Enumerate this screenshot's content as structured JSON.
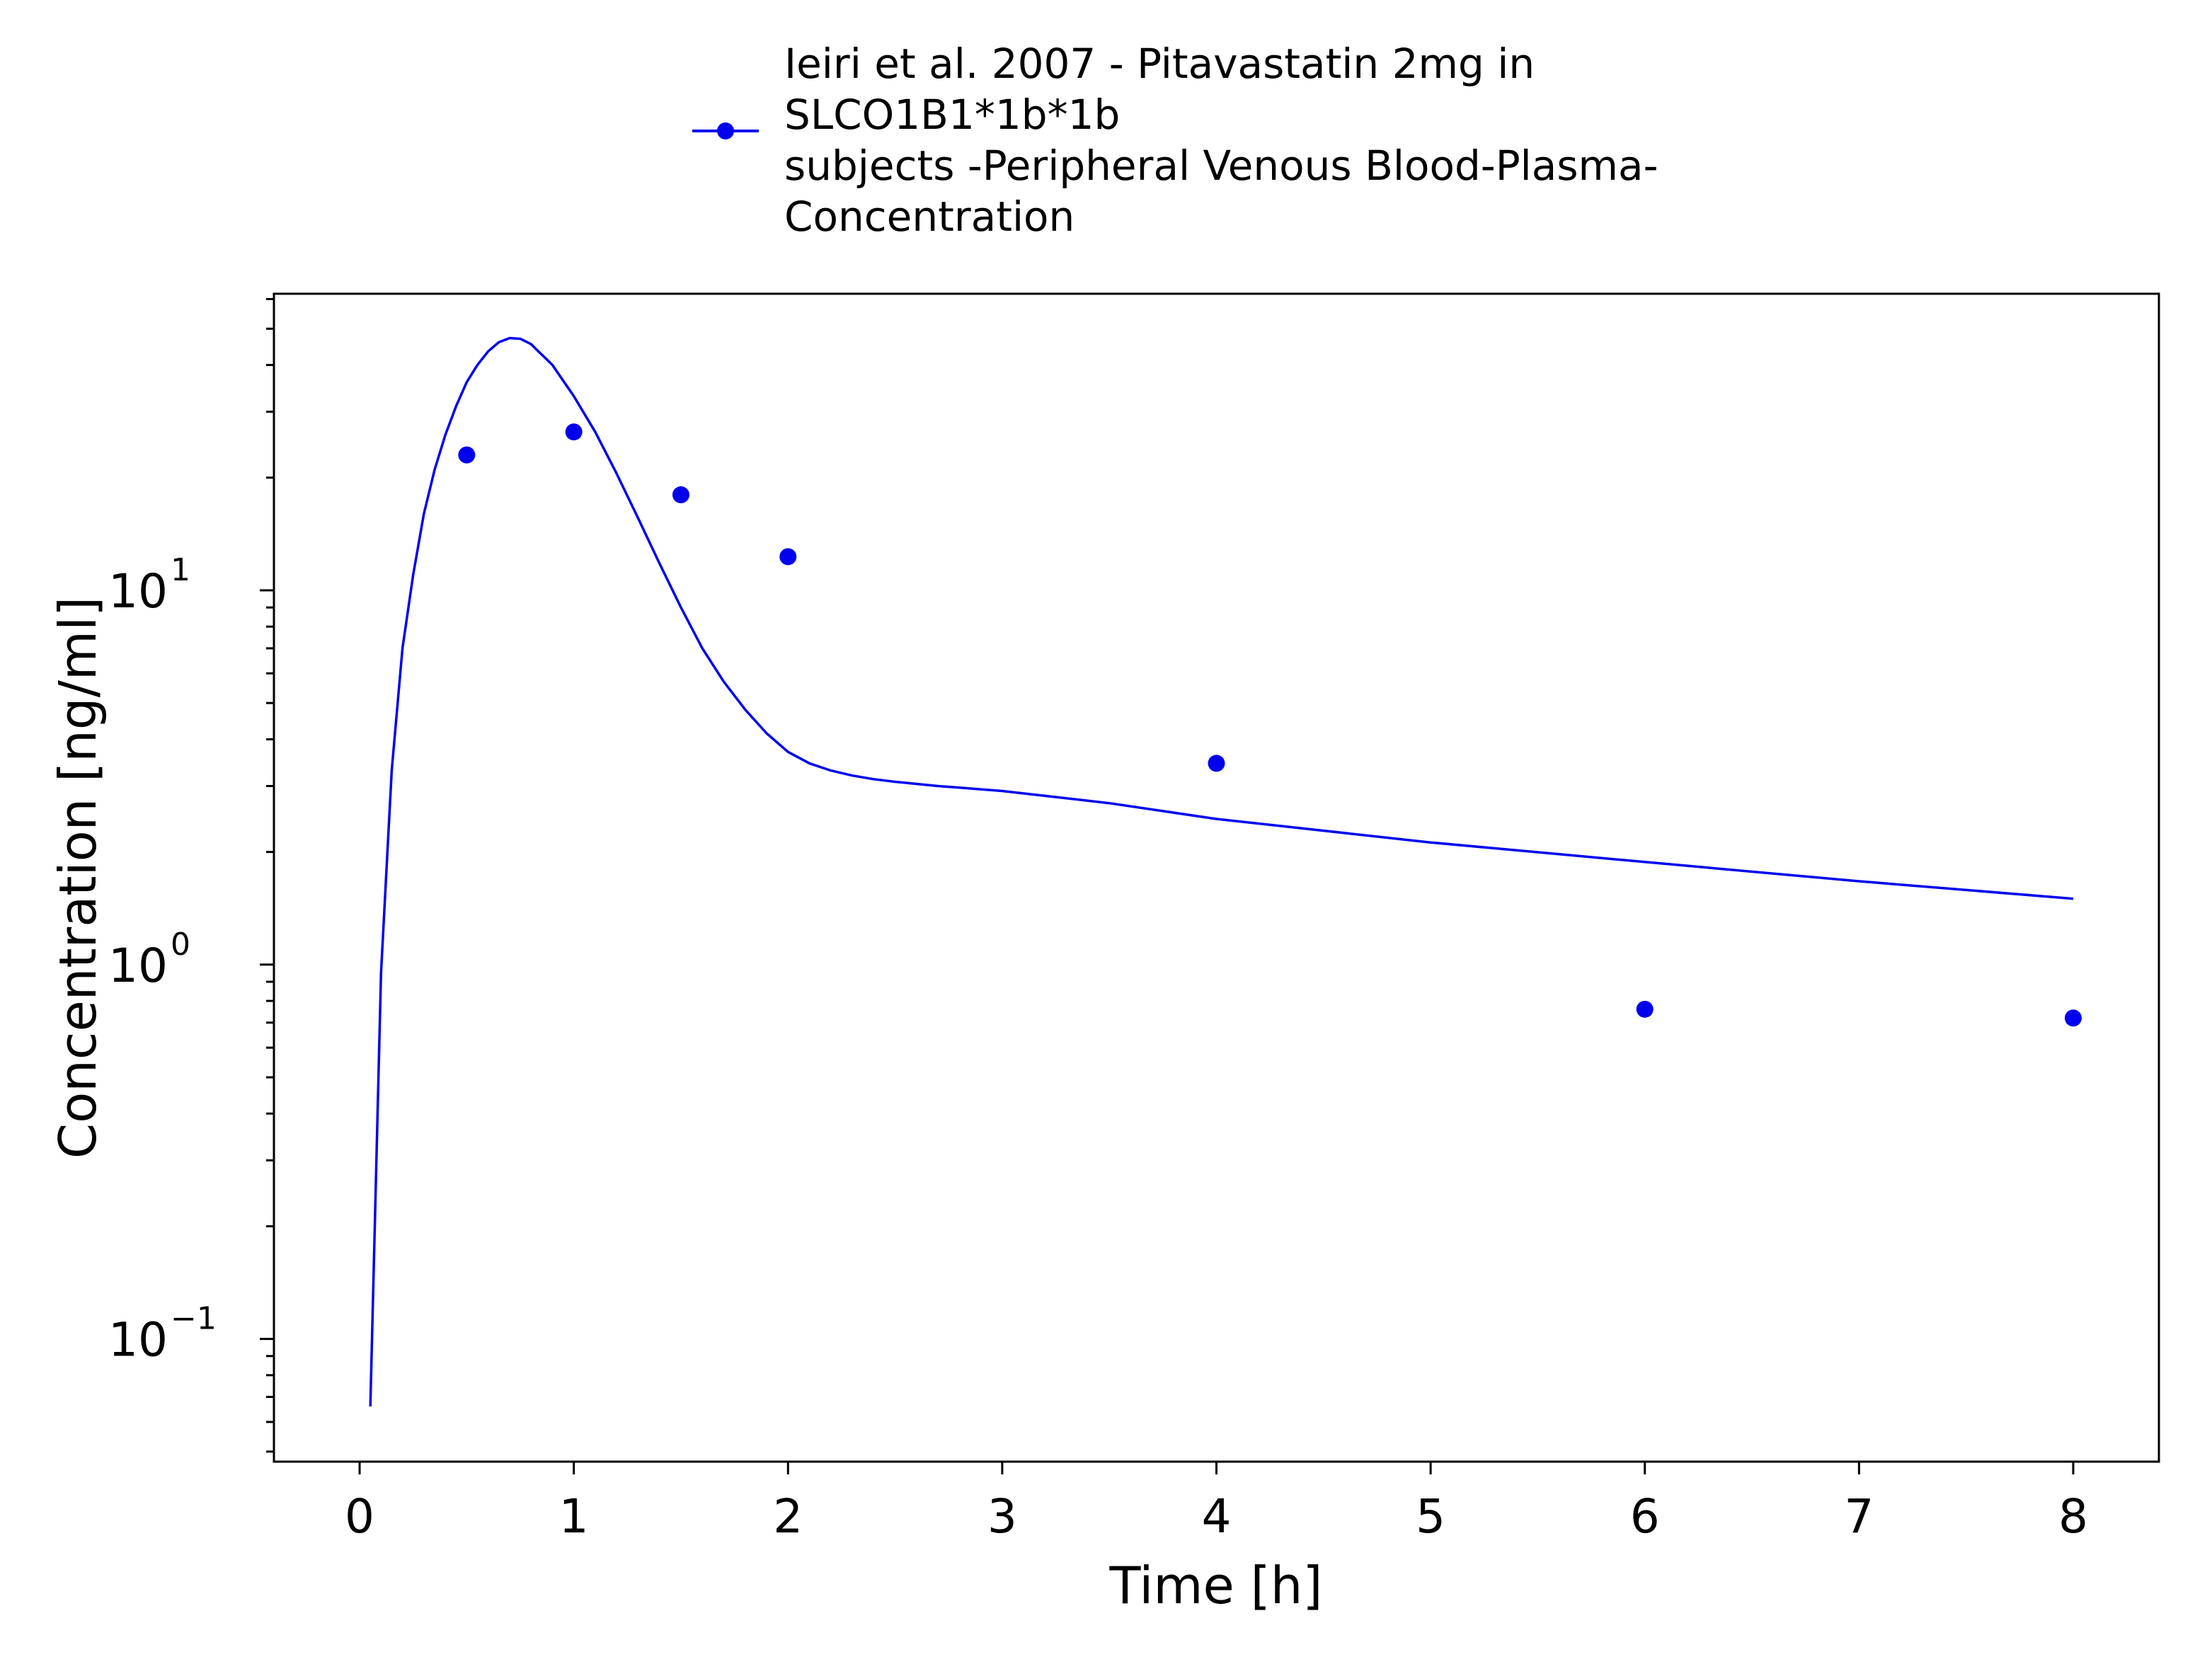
{
  "chart_data": {
    "type": "line",
    "title": "",
    "xlabel": "Time [h]",
    "ylabel": "Concentration [ng/ml]",
    "xlim": [
      -0.4,
      8.4
    ],
    "ylim": [
      0.047,
      62
    ],
    "y_scale": "log",
    "grid": false,
    "legend_position": "top-center",
    "x_ticks": [
      "0",
      "1",
      "2",
      "3",
      "4",
      "5",
      "6",
      "7",
      "8"
    ],
    "y_ticks": [
      {
        "base": "10",
        "exp": "−1"
      },
      {
        "base": "10",
        "exp": "0"
      },
      {
        "base": "10",
        "exp": "1"
      }
    ],
    "series": [
      {
        "name": "Ieiri et al. 2007 - Pitavastatin 2mg in SLCO1B1*1b*1b subjects -Peripheral Venous Blood-Plasma-Concentration",
        "legend_lines": [
          "Ieiri et al. 2007 - Pitavastatin 2mg in",
          "SLCO1B1*1b*1b",
          "subjects -Peripheral Venous Blood-Plasma-",
          "Concentration"
        ],
        "color": "#0000ee",
        "simulated_curve": {
          "x": [
            0.05,
            0.1,
            0.15,
            0.2,
            0.25,
            0.3,
            0.35,
            0.4,
            0.45,
            0.5,
            0.55,
            0.6,
            0.65,
            0.7,
            0.75,
            0.8,
            0.9,
            1.0,
            1.1,
            1.2,
            1.3,
            1.4,
            1.5,
            1.6,
            1.7,
            1.8,
            1.9,
            2.0,
            2.1,
            2.2,
            2.3,
            2.4,
            2.5,
            2.6,
            2.7,
            2.8,
            3.0,
            3.5,
            4.0,
            5.0,
            6.0,
            7.0,
            8.0
          ],
          "y": [
            0.066,
            0.95,
            3.3,
            7.0,
            11.0,
            16.0,
            21.0,
            26.0,
            31.0,
            36.0,
            40.0,
            43.5,
            46.0,
            47.2,
            47.0,
            45.5,
            40.0,
            33.0,
            26.5,
            20.5,
            15.6,
            11.8,
            9.0,
            7.0,
            5.7,
            4.8,
            4.15,
            3.7,
            3.45,
            3.3,
            3.2,
            3.13,
            3.08,
            3.04,
            3.0,
            2.97,
            2.91,
            2.7,
            2.45,
            2.12,
            1.88,
            1.67,
            1.5
          ]
        },
        "observed": {
          "x": [
            0.5,
            1.0,
            1.5,
            2.0,
            4.0,
            6.0,
            8.0
          ],
          "y": [
            23.0,
            26.5,
            18.0,
            12.3,
            3.45,
            0.76,
            0.72
          ]
        }
      }
    ]
  }
}
